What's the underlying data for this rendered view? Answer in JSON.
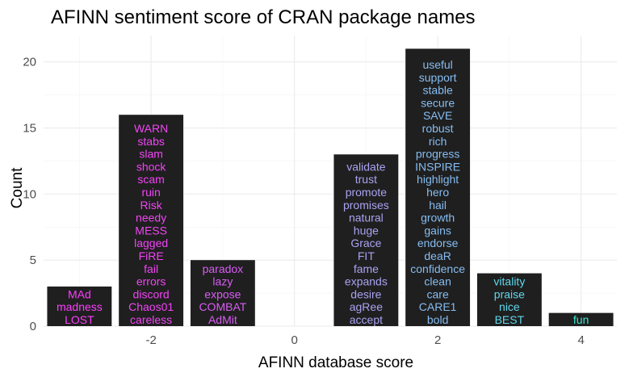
{
  "chart_data": {
    "type": "bar",
    "title": "AFINN sentiment score of CRAN package names",
    "xlabel": "AFINN database score",
    "ylabel": "Count",
    "xlim": [
      -3.5,
      4.5
    ],
    "ylim": [
      0,
      22
    ],
    "x_ticks": [
      -2,
      0,
      2,
      4
    ],
    "y_ticks": [
      0,
      5,
      10,
      15,
      20
    ],
    "grid": true,
    "bar_color": "#1f1f1f",
    "bars": [
      {
        "score": -3,
        "count": 3,
        "color": "#ff3dff",
        "words": [
          "MAd",
          "madness",
          "LOST"
        ]
      },
      {
        "score": -2,
        "count": 16,
        "color": "#f244f6",
        "words": [
          "WARN",
          "stabs",
          "slam",
          "shock",
          "scam",
          "ruin",
          "Risk",
          "needy",
          "MESS",
          "lagged",
          "FiRE",
          "fail",
          "errors",
          "discord",
          "Chaos01",
          "careless"
        ]
      },
      {
        "score": -1,
        "count": 5,
        "color": "#d95cf5",
        "words": [
          "paradox",
          "lazy",
          "expose",
          "COMBAT",
          "AdMit"
        ]
      },
      {
        "score": 1,
        "count": 13,
        "color": "#a9a3f2",
        "words": [
          "validate",
          "trust",
          "promote",
          "promises",
          "natural",
          "huge",
          "Grace",
          "FIT",
          "fame",
          "expands",
          "desire",
          "agRee",
          "accept"
        ]
      },
      {
        "score": 2,
        "count": 21,
        "color": "#86bdf2",
        "words": [
          "useful",
          "support",
          "stable",
          "secure",
          "SAVE",
          "robust",
          "rich",
          "progress",
          "INSPIRE",
          "highlight",
          "hero",
          "hail",
          "growth",
          "gains",
          "endorse",
          "deaR",
          "confidence",
          "clean",
          "care",
          "CARE1",
          "bold"
        ]
      },
      {
        "score": 3,
        "count": 4,
        "color": "#5fd8ec",
        "words": [
          "vitality",
          "praise",
          "nice",
          "BEST"
        ]
      },
      {
        "score": 4,
        "count": 1,
        "color": "#33ead2",
        "words": [
          "fun"
        ]
      }
    ]
  }
}
